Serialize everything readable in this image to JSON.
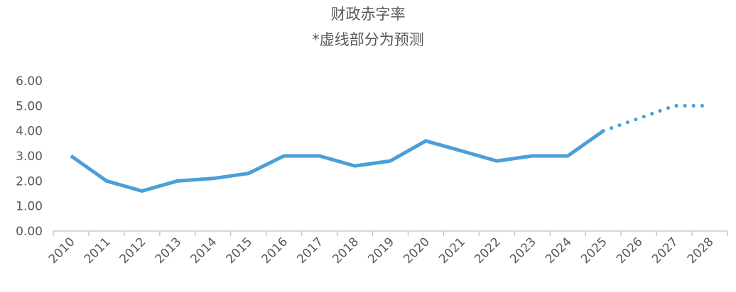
{
  "chart_data": {
    "type": "line",
    "title": "财政赤字率",
    "subtitle": "*虚线部分为预测",
    "categories": [
      "2010",
      "2011",
      "2012",
      "2013",
      "2014",
      "2015",
      "2016",
      "2017",
      "2018",
      "2019",
      "2020",
      "2021",
      "2022",
      "2023",
      "2024",
      "2025",
      "2026",
      "2027",
      "2028"
    ],
    "series": [
      {
        "name": "",
        "style": "solid",
        "values": [
          3.0,
          2.0,
          1.6,
          2.0,
          2.1,
          2.3,
          3.0,
          3.0,
          2.6,
          2.8,
          3.6,
          3.2,
          2.8,
          3.0,
          3.0,
          4.0,
          null,
          null,
          null
        ]
      },
      {
        "name": "",
        "style": "dotted",
        "values": [
          null,
          null,
          null,
          null,
          null,
          null,
          null,
          null,
          null,
          null,
          null,
          null,
          null,
          null,
          null,
          4.0,
          4.5,
          5.0,
          5.0
        ]
      }
    ],
    "yticks": [
      "0.00",
      "1.00",
      "2.00",
      "3.00",
      "4.00",
      "5.00",
      "6.00"
    ],
    "ylim": [
      0,
      6
    ],
    "grid": false,
    "legend": "none",
    "color": "#4a9fd8",
    "axis_color": "#bfbfbf"
  }
}
